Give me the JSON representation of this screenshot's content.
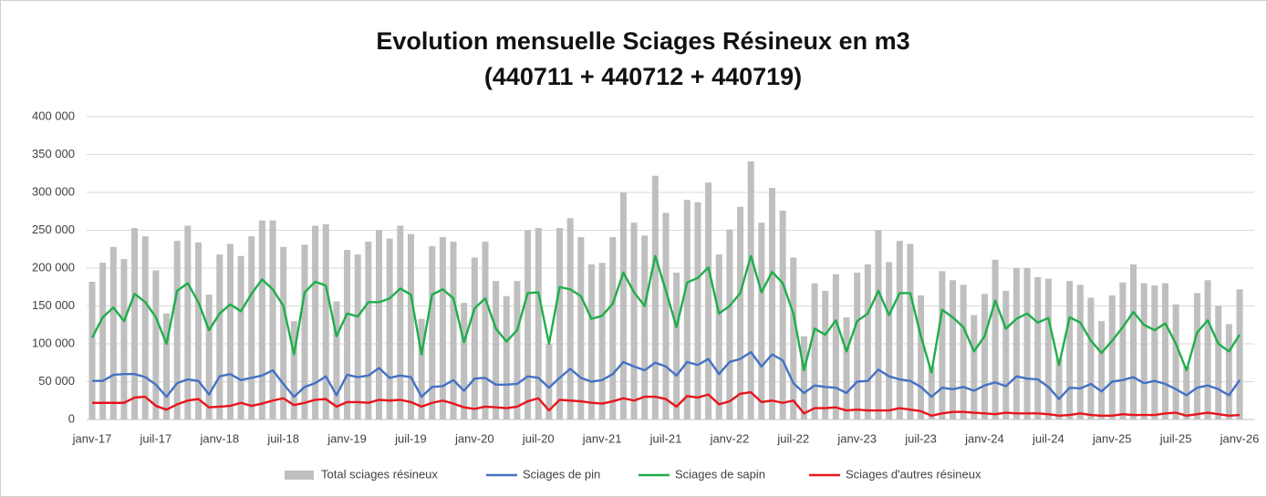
{
  "chart_data": {
    "type": "combo",
    "title": "Evolution mensuelle Sciages Résineux en m3",
    "subtitle": "(440711 + 440712 + 440719)",
    "categories": [
      "janv-17",
      null,
      null,
      null,
      null,
      null,
      "juil-17",
      null,
      null,
      null,
      null,
      null,
      "janv-18",
      null,
      null,
      null,
      null,
      null,
      "juil-18",
      null,
      null,
      null,
      null,
      null,
      "janv-19",
      null,
      null,
      null,
      null,
      null,
      "juil-19",
      null,
      null,
      null,
      null,
      null,
      "janv-20",
      null,
      null,
      null,
      null,
      null,
      "juil-20",
      null,
      null,
      null,
      null,
      null,
      "janv-21",
      null,
      null,
      null,
      null,
      null,
      "juil-21",
      null,
      null,
      null,
      null,
      null,
      "janv-22",
      null,
      null,
      null,
      null,
      null,
      "juil-22",
      null,
      null,
      null,
      null,
      null,
      "janv-23",
      null,
      null,
      null,
      null,
      null,
      "juil-23",
      null,
      null,
      null,
      null,
      null,
      "janv-24",
      null,
      null,
      null,
      null,
      null,
      "juil-24",
      null,
      null,
      null,
      null,
      null,
      "janv-25",
      null,
      null,
      null,
      null,
      null,
      "juil-25",
      null,
      null,
      null,
      null,
      null,
      "janv-26"
    ],
    "series": [
      {
        "name": "Total sciages résineux",
        "type": "bar",
        "color": "#bfbfbf",
        "values": [
          182000,
          207000,
          228000,
          212000,
          253000,
          242000,
          197000,
          140000,
          236000,
          256000,
          234000,
          165000,
          218000,
          232000,
          216000,
          242000,
          263000,
          263000,
          228000,
          130000,
          231000,
          256000,
          258000,
          156000,
          224000,
          218000,
          235000,
          250000,
          239000,
          256000,
          245000,
          133000,
          229000,
          241000,
          235000,
          154000,
          214000,
          235000,
          183000,
          163000,
          183000,
          250000,
          253000,
          100000,
          253000,
          266000,
          241000,
          205000,
          207000,
          241000,
          300000,
          260000,
          243000,
          322000,
          273000,
          194000,
          290000,
          287000,
          313000,
          218000,
          251000,
          281000,
          341000,
          260000,
          306000,
          276000,
          214000,
          110000,
          180000,
          170000,
          192000,
          135000,
          194000,
          205000,
          250000,
          208000,
          236000,
          232000,
          164000,
          70000,
          196000,
          184000,
          178000,
          138000,
          166000,
          211000,
          170000,
          200000,
          200000,
          188000,
          186000,
          80000,
          183000,
          178000,
          161000,
          130000,
          164000,
          181000,
          205000,
          180000,
          177000,
          180000,
          152000,
          70000,
          167000,
          184000,
          150000,
          126000,
          172000
        ]
      },
      {
        "name": "Sciages de pin",
        "type": "line",
        "color": "#4472c4",
        "values": [
          51000,
          51000,
          59000,
          60000,
          60000,
          56000,
          46000,
          30000,
          48000,
          53000,
          51000,
          33000,
          57000,
          60000,
          52000,
          55000,
          58000,
          65000,
          47000,
          30000,
          43000,
          48000,
          57000,
          32000,
          59000,
          56000,
          58000,
          68000,
          55000,
          58000,
          56000,
          30000,
          43000,
          44000,
          52000,
          38000,
          54000,
          55000,
          46000,
          46000,
          47000,
          57000,
          55000,
          42000,
          55000,
          67000,
          55000,
          50000,
          52000,
          60000,
          76000,
          70000,
          65000,
          75000,
          70000,
          58000,
          76000,
          72000,
          80000,
          60000,
          76000,
          80000,
          89000,
          70000,
          86000,
          78000,
          48000,
          35000,
          45000,
          43000,
          42000,
          35000,
          50000,
          51000,
          66000,
          57000,
          53000,
          51000,
          43000,
          30000,
          42000,
          40000,
          43000,
          38000,
          45000,
          49000,
          44000,
          57000,
          54000,
          53000,
          43000,
          27000,
          42000,
          41000,
          47000,
          37000,
          50000,
          52000,
          56000,
          48000,
          51000,
          47000,
          40000,
          32000,
          42000,
          45000,
          40000,
          32000,
          52000
        ]
      },
      {
        "name": "Sciages de sapin",
        "type": "line",
        "color": "#1fae4b",
        "values": [
          108000,
          135000,
          148000,
          130000,
          166000,
          155000,
          135000,
          100000,
          170000,
          180000,
          155000,
          118000,
          140000,
          152000,
          143000,
          166000,
          185000,
          172000,
          150000,
          86000,
          168000,
          182000,
          177000,
          110000,
          140000,
          136000,
          155000,
          155000,
          160000,
          173000,
          165000,
          86000,
          165000,
          172000,
          160000,
          102000,
          147000,
          160000,
          120000,
          103000,
          118000,
          167000,
          168000,
          100000,
          175000,
          172000,
          163000,
          133000,
          137000,
          153000,
          194000,
          168000,
          150000,
          216000,
          170000,
          122000,
          181000,
          187000,
          201000,
          140000,
          150000,
          167000,
          216000,
          168000,
          195000,
          180000,
          140000,
          65000,
          120000,
          112000,
          131000,
          90000,
          130000,
          140000,
          170000,
          138000,
          167000,
          167000,
          110000,
          62000,
          145000,
          135000,
          122000,
          90000,
          110000,
          157000,
          120000,
          133000,
          140000,
          128000,
          134000,
          72000,
          135000,
          128000,
          104000,
          88000,
          104000,
          122000,
          142000,
          125000,
          118000,
          127000,
          100000,
          65000,
          115000,
          131000,
          100000,
          90000,
          112000
        ]
      },
      {
        "name": "Sciages d'autres résineux",
        "type": "line",
        "color": "#e8141b",
        "values": [
          22000,
          22000,
          22000,
          22000,
          29000,
          30000,
          18000,
          13000,
          20000,
          25000,
          27000,
          16000,
          17000,
          18000,
          22000,
          18000,
          21000,
          25000,
          28000,
          19000,
          22000,
          26000,
          27000,
          17000,
          23000,
          23000,
          22000,
          26000,
          25000,
          26000,
          23000,
          17000,
          22000,
          25000,
          21000,
          16000,
          14000,
          17000,
          16000,
          15000,
          17000,
          24000,
          28000,
          12000,
          26000,
          25000,
          24000,
          22000,
          21000,
          24000,
          28000,
          25000,
          30000,
          30000,
          27000,
          17000,
          31000,
          29000,
          33000,
          20000,
          24000,
          34000,
          36000,
          23000,
          25000,
          22000,
          25000,
          8000,
          15000,
          15000,
          16000,
          12000,
          13000,
          12000,
          12000,
          12000,
          15000,
          13000,
          11000,
          5000,
          8000,
          10000,
          10000,
          9000,
          8000,
          7000,
          9000,
          8000,
          8000,
          8000,
          7000,
          5000,
          6000,
          8000,
          6000,
          5000,
          5000,
          7000,
          6000,
          6000,
          6000,
          8000,
          9000,
          5000,
          7000,
          9000,
          7000,
          5000,
          6000
        ]
      }
    ],
    "ylim": [
      0,
      400000
    ],
    "yticks": [
      0,
      {
        "value": 50000,
        "label": "50 000"
      },
      {
        "value": 100000,
        "label": "100 000"
      },
      {
        "value": 150000,
        "label": "150 000"
      },
      {
        "value": 200000,
        "label": "200 000"
      },
      {
        "value": 250000,
        "label": "250 000"
      },
      {
        "value": 300000,
        "label": "300 000"
      },
      {
        "value": 350000,
        "label": "350 000"
      },
      {
        "value": 400000,
        "label": "400 000"
      }
    ],
    "grid": true,
    "legend": "bottom"
  }
}
